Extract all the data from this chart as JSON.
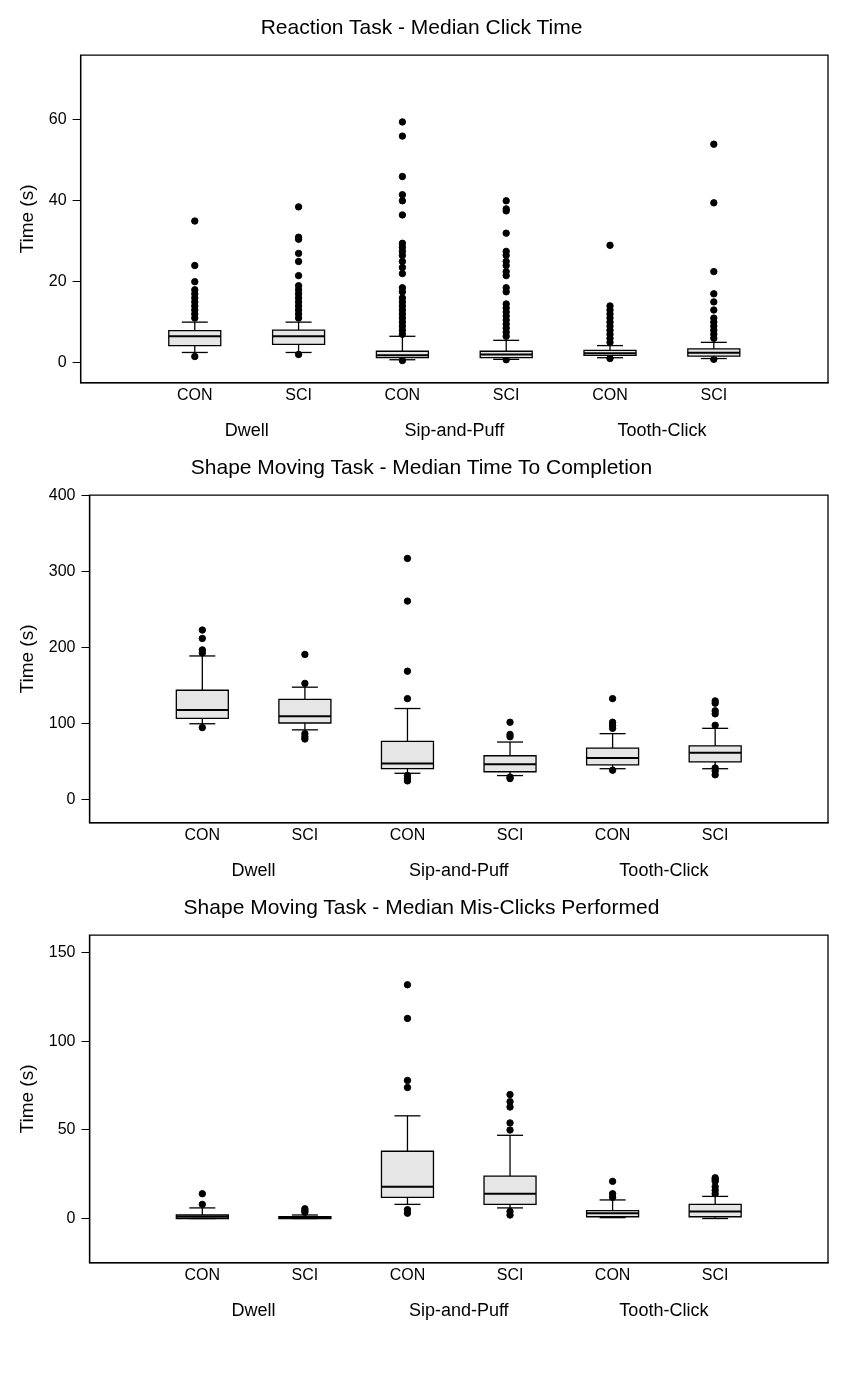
{
  "chart_data": [
    {
      "type": "box",
      "title": "Reaction Task - Median Click Time",
      "ylabel": "Time (s)",
      "categories": [
        "CON",
        "SCI",
        "CON",
        "SCI",
        "CON",
        "SCI"
      ],
      "annotations": [
        "Dwell",
        "Sip-and-Puff",
        "Tooth-Click"
      ],
      "color": "#e6e6e6",
      "ylim": [
        -5,
        76
      ],
      "yticks": [
        0,
        20,
        40,
        60
      ],
      "grid": false,
      "legend": false,
      "marker": "circle",
      "boxes": [
        {
          "low": 2.5,
          "q1": 4.2,
          "median": 6.5,
          "q3": 7.9,
          "high": 10,
          "outliers": [
            35,
            24,
            20,
            18,
            17,
            16,
            15,
            14,
            13,
            12,
            11,
            1.5
          ]
        },
        {
          "low": 2.5,
          "q1": 4.5,
          "median": 6.5,
          "q3": 8,
          "high": 10,
          "outliers": [
            38.5,
            31,
            30.5,
            27,
            25,
            21.5,
            19,
            18,
            17,
            16,
            15,
            14,
            13,
            12,
            11,
            2
          ]
        },
        {
          "low": 0.7,
          "q1": 1.2,
          "median": 1.8,
          "q3": 2.8,
          "high": 6.5,
          "outliers": [
            59.5,
            56,
            46,
            41.5,
            40,
            36.5,
            29.5,
            28.5,
            27.5,
            26.5,
            25,
            23.5,
            22,
            18.5,
            17.5,
            16,
            15,
            14,
            13,
            12,
            11,
            10,
            9,
            8,
            7,
            0.5
          ]
        },
        {
          "low": 0.8,
          "q1": 1.2,
          "median": 2,
          "q3": 2.8,
          "high": 5.5,
          "outliers": [
            40,
            38,
            37.5,
            32,
            27.5,
            26.5,
            25,
            24,
            22.5,
            21.5,
            18.5,
            17.5,
            14.5,
            13.5,
            12.5,
            11.5,
            10.5,
            9.5,
            8.5,
            7.5,
            6.5,
            0.7
          ]
        },
        {
          "low": 1.2,
          "q1": 1.8,
          "median": 2.3,
          "q3": 3,
          "high": 4.2,
          "outliers": [
            29,
            14,
            13,
            12,
            11,
            10,
            9,
            8,
            7,
            6,
            5,
            1
          ]
        },
        {
          "low": 1,
          "q1": 1.6,
          "median": 2.4,
          "q3": 3.4,
          "high": 5,
          "outliers": [
            54,
            39.5,
            22.5,
            17,
            15,
            13,
            11,
            10,
            9,
            8,
            7,
            6,
            0.8
          ]
        }
      ]
    },
    {
      "type": "box",
      "title": "Shape Moving Task - Median Time To Completion",
      "ylabel": "Time (s)",
      "categories": [
        "CON",
        "SCI",
        "CON",
        "SCI",
        "CON",
        "SCI"
      ],
      "annotations": [
        "Dwell",
        "Sip-and-Puff",
        "Tooth-Click"
      ],
      "color": "#e6e6e6",
      "ylim": [
        -30,
        400
      ],
      "yticks": [
        0,
        100,
        200,
        300,
        400
      ],
      "grid": false,
      "legend": false,
      "marker": "circle",
      "boxes": [
        {
          "low": 100,
          "q1": 107,
          "median": 118,
          "q3": 144,
          "high": 189,
          "outliers": [
            223,
            212,
            197,
            193,
            95
          ]
        },
        {
          "low": 92,
          "q1": 101,
          "median": 110,
          "q3": 132,
          "high": 148,
          "outliers": [
            191,
            153,
            87,
            83,
            80
          ]
        },
        {
          "low": 35,
          "q1": 41,
          "median": 48,
          "q3": 77,
          "high": 120,
          "outliers": [
            317,
            261,
            169,
            133,
            32,
            28,
            25
          ]
        },
        {
          "low": 32,
          "q1": 37,
          "median": 47,
          "q3": 58,
          "high": 76,
          "outliers": [
            102,
            86,
            83,
            30,
            28
          ]
        },
        {
          "low": 41,
          "q1": 46,
          "median": 55,
          "q3": 68,
          "high": 87,
          "outliers": [
            133,
            102,
            98,
            94,
            39
          ]
        },
        {
          "low": 41,
          "q1": 50,
          "median": 62,
          "q3": 71,
          "high": 94,
          "outliers": [
            130,
            127,
            117,
            113,
            98,
            42,
            38,
            33
          ]
        }
      ]
    },
    {
      "type": "box",
      "title": "Shape Moving Task - Median Mis-Clicks Performed",
      "ylabel": "Time (s)",
      "categories": [
        "CON",
        "SCI",
        "CON",
        "SCI",
        "CON",
        "SCI"
      ],
      "annotations": [
        "Dwell",
        "Sip-and-Puff",
        "Tooth-Click"
      ],
      "color": "#e6e6e6",
      "ylim": [
        -25,
        160
      ],
      "yticks": [
        0,
        50,
        100,
        150
      ],
      "grid": false,
      "legend": false,
      "marker": "circle",
      "boxes": [
        {
          "low": 0,
          "q1": 0,
          "median": 1,
          "q3": 2,
          "high": 6,
          "outliers": [
            14,
            8
          ]
        },
        {
          "low": 0,
          "q1": 0,
          "median": 0.5,
          "q3": 1,
          "high": 2,
          "outliers": [
            5.5,
            4.5,
            3.5
          ]
        },
        {
          "low": 8,
          "q1": 12,
          "median": 18,
          "q3": 38,
          "high": 58,
          "outliers": [
            132,
            113,
            78,
            74,
            5,
            3
          ]
        },
        {
          "low": 6,
          "q1": 8,
          "median": 14,
          "q3": 24,
          "high": 47,
          "outliers": [
            70,
            66,
            63,
            54,
            50,
            4,
            2
          ]
        },
        {
          "low": 0.5,
          "q1": 1,
          "median": 3,
          "q3": 4.5,
          "high": 10.5,
          "outliers": [
            21,
            14,
            12
          ]
        },
        {
          "low": 0,
          "q1": 1,
          "median": 4,
          "q3": 8,
          "high": 12.5,
          "outliers": [
            23,
            22,
            21,
            18,
            16,
            14
          ]
        }
      ]
    }
  ]
}
